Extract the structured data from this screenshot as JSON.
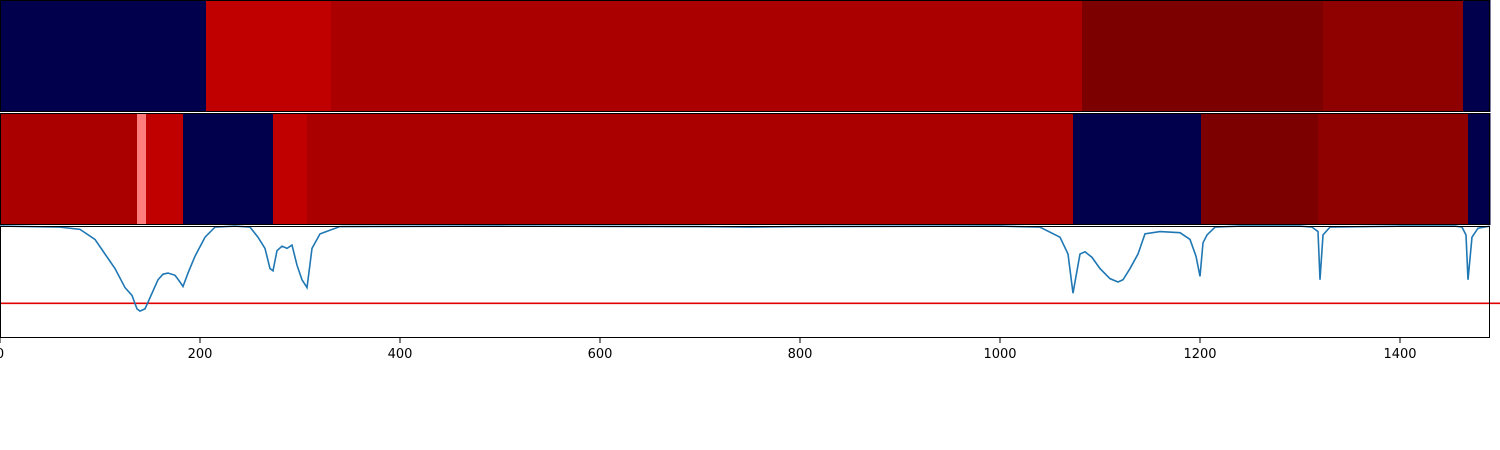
{
  "chart_data": [
    {
      "type": "heatmap",
      "title": "",
      "x_range": [
        0,
        1490
      ],
      "segments": [
        {
          "start": 0,
          "end": 206,
          "color": "#00004c"
        },
        {
          "start": 206,
          "end": 331,
          "color": "#c00000"
        },
        {
          "start": 331,
          "end": 1082,
          "color": "#aa0000"
        },
        {
          "start": 1082,
          "end": 1323,
          "color": "#7c0000"
        },
        {
          "start": 1323,
          "end": 1463,
          "color": "#8f0000"
        },
        {
          "start": 1463,
          "end": 1490,
          "color": "#00004c"
        }
      ]
    },
    {
      "type": "heatmap",
      "title": "",
      "x_range": [
        0,
        1490
      ],
      "segments": [
        {
          "start": 0,
          "end": 137,
          "color": "#aa0000"
        },
        {
          "start": 137,
          "end": 146,
          "color": "#ff7c7c"
        },
        {
          "start": 146,
          "end": 183,
          "color": "#c00000"
        },
        {
          "start": 183,
          "end": 273,
          "color": "#00004c"
        },
        {
          "start": 273,
          "end": 307,
          "color": "#c00000"
        },
        {
          "start": 307,
          "end": 1073,
          "color": "#aa0000"
        },
        {
          "start": 1073,
          "end": 1201,
          "color": "#00004c"
        },
        {
          "start": 1201,
          "end": 1318,
          "color": "#7c0000"
        },
        {
          "start": 1318,
          "end": 1468,
          "color": "#8f0000"
        },
        {
          "start": 1468,
          "end": 1490,
          "color": "#00004c"
        }
      ]
    },
    {
      "type": "line",
      "title": "",
      "xlabel": "",
      "ylabel": "",
      "xlim": [
        0,
        1490
      ],
      "ylim": [
        0,
        1
      ],
      "xticks": [
        0,
        200,
        400,
        600,
        800,
        1000,
        1200,
        1400
      ],
      "xtick_labels": [
        "0",
        "200",
        "400",
        "600",
        "800",
        "1000",
        "1200",
        "1400"
      ],
      "threshold": {
        "value": 0.31,
        "color": "#e00000"
      },
      "series": [
        {
          "color": "#1f77b4",
          "x": [
            0,
            60,
            80,
            95,
            105,
            115,
            125,
            132,
            137,
            140,
            145,
            150,
            158,
            163,
            168,
            175,
            180,
            183,
            188,
            195,
            205,
            215,
            235,
            250,
            258,
            265,
            270,
            273,
            277,
            282,
            287,
            292,
            297,
            302,
            307,
            312,
            320,
            340,
            500,
            700,
            750,
            800,
            1000,
            1040,
            1060,
            1068,
            1073,
            1076,
            1080,
            1085,
            1092,
            1100,
            1110,
            1118,
            1123,
            1130,
            1138,
            1145,
            1160,
            1180,
            1190,
            1196,
            1200,
            1203,
            1207,
            1215,
            1240,
            1300,
            1312,
            1318,
            1320,
            1323,
            1330,
            1400,
            1455,
            1462,
            1466,
            1468,
            1472,
            1478,
            1490
          ],
          "y": [
            0.999,
            0.99,
            0.97,
            0.88,
            0.75,
            0.62,
            0.45,
            0.38,
            0.26,
            0.24,
            0.26,
            0.36,
            0.52,
            0.57,
            0.58,
            0.56,
            0.5,
            0.46,
            0.58,
            0.73,
            0.9,
            0.99,
            0.999,
            0.99,
            0.9,
            0.8,
            0.62,
            0.6,
            0.78,
            0.82,
            0.8,
            0.83,
            0.65,
            0.52,
            0.45,
            0.8,
            0.93,
            0.995,
            0.999,
            0.995,
            0.99,
            0.995,
            0.999,
            0.99,
            0.9,
            0.75,
            0.4,
            0.55,
            0.75,
            0.77,
            0.72,
            0.62,
            0.53,
            0.5,
            0.52,
            0.62,
            0.75,
            0.93,
            0.95,
            0.94,
            0.88,
            0.73,
            0.55,
            0.85,
            0.92,
            0.99,
            0.999,
            0.999,
            0.99,
            0.95,
            0.52,
            0.92,
            0.99,
            0.999,
            0.999,
            0.99,
            0.92,
            0.52,
            0.9,
            0.98,
            0.999
          ]
        }
      ]
    }
  ]
}
